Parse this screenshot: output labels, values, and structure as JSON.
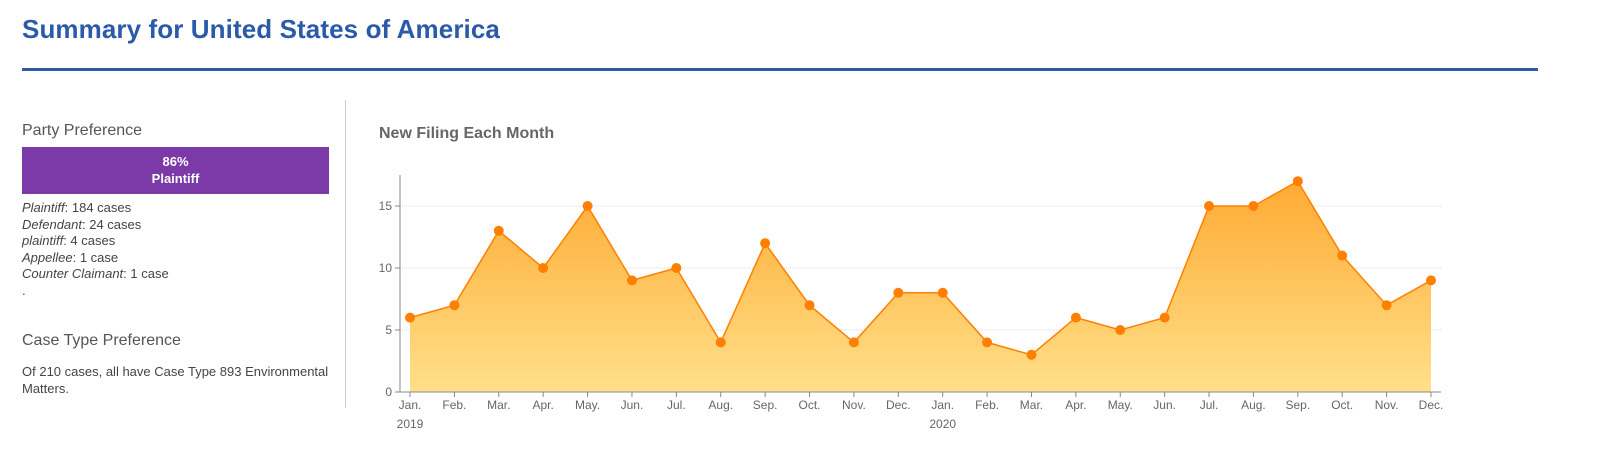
{
  "header": {
    "title": "Summary for United States of America"
  },
  "party_preference": {
    "heading": "Party Preference",
    "bar_percent": "86%",
    "bar_label": "Plaintiff",
    "bar_color": "#7b3aa8",
    "items": [
      {
        "party": "Plaintiff",
        "count": ": 184 cases"
      },
      {
        "party": "Defendant",
        "count": ": 24 cases"
      },
      {
        "party": "plaintiff",
        "count": ": 4 cases"
      },
      {
        "party": "Appellee",
        "count": ": 1 case"
      },
      {
        "party": "Counter Claimant",
        "count": ": 1 case"
      }
    ],
    "trailing": "."
  },
  "case_type_preference": {
    "heading": "Case Type Preference",
    "text": "Of 210 cases, all have Case Type 893 Environmental Matters."
  },
  "chart_data": {
    "type": "area",
    "title": "New Filing Each Month",
    "line_color": "#ff8000",
    "fill_top_color": "#ffaa33",
    "fill_bottom_color": "#ffe08a",
    "categories": [
      "Jan.",
      "Feb.",
      "Mar.",
      "Apr.",
      "May.",
      "Jun.",
      "Jul.",
      "Aug.",
      "Sep.",
      "Oct.",
      "Nov.",
      "Dec.",
      "Jan.",
      "Feb.",
      "Mar.",
      "Apr.",
      "May.",
      "Jun.",
      "Jul.",
      "Aug.",
      "Sep.",
      "Oct.",
      "Nov.",
      "Dec."
    ],
    "year_labels": [
      {
        "index": 0,
        "label": "2019"
      },
      {
        "index": 12,
        "label": "2020"
      }
    ],
    "values": [
      6,
      7,
      13,
      10,
      15,
      9,
      10,
      4,
      12,
      7,
      4,
      8,
      8,
      4,
      3,
      6,
      5,
      6,
      15,
      15,
      17,
      11,
      7,
      9
    ],
    "yticks": [
      0,
      5,
      10,
      15
    ],
    "ylim": [
      0,
      17.5
    ],
    "grid": true
  }
}
